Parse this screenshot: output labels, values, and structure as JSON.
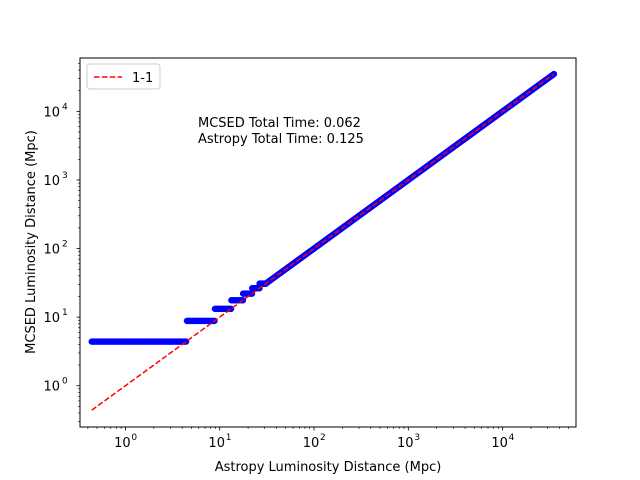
{
  "chart_data": {
    "type": "scatter",
    "xlabel": "Astropy Luminosity Distance (Mpc)",
    "ylabel": "MCSED Luminosity Distance (Mpc)",
    "xscale": "log",
    "yscale": "log",
    "xlim": [
      0.33,
      60000
    ],
    "ylim": [
      0.25,
      60000
    ],
    "x_ticks": [
      {
        "value": 1,
        "base": "10",
        "exp": "0"
      },
      {
        "value": 10,
        "base": "10",
        "exp": "1"
      },
      {
        "value": 100,
        "base": "10",
        "exp": "2"
      },
      {
        "value": 1000,
        "base": "10",
        "exp": "3"
      },
      {
        "value": 10000,
        "base": "10",
        "exp": "4"
      }
    ],
    "y_ticks": [
      {
        "value": 1,
        "base": "10",
        "exp": "0"
      },
      {
        "value": 10,
        "base": "10",
        "exp": "1"
      },
      {
        "value": 100,
        "base": "10",
        "exp": "2"
      },
      {
        "value": 1000,
        "base": "10",
        "exp": "3"
      },
      {
        "value": 10000,
        "base": "10",
        "exp": "4"
      }
    ],
    "legend": {
      "placement": "upper-left",
      "entries": [
        "1-1"
      ]
    },
    "annotations": [
      "MCSED Total Time: 0.062",
      "Astropy Total Time: 0.125"
    ],
    "reference_line": {
      "name": "1-1",
      "style": "dashed",
      "color": "#ff0000",
      "x": [
        0.44,
        35000
      ],
      "y": [
        0.44,
        35000
      ]
    },
    "series": [
      {
        "name": "",
        "color": "#0000ff",
        "segments": [
          {
            "x_start": 0.44,
            "x_end": 4.4,
            "y": 4.4
          },
          {
            "x_start": 4.5,
            "x_end": 8.8,
            "y": 8.8
          },
          {
            "x_start": 8.9,
            "x_end": 13.2,
            "y": 13.2
          },
          {
            "x_start": 13.3,
            "x_end": 17.6,
            "y": 17.6
          },
          {
            "x_start": 17.7,
            "x_end": 22.0,
            "y": 22.0
          },
          {
            "x_start": 22.1,
            "x_end": 26.4,
            "y": 26.4
          },
          {
            "x_start": 26.5,
            "x_end": 30.8,
            "y": 30.8
          }
        ],
        "diagonal": {
          "x_start": 30.8,
          "x_end": 35000
        }
      }
    ]
  }
}
